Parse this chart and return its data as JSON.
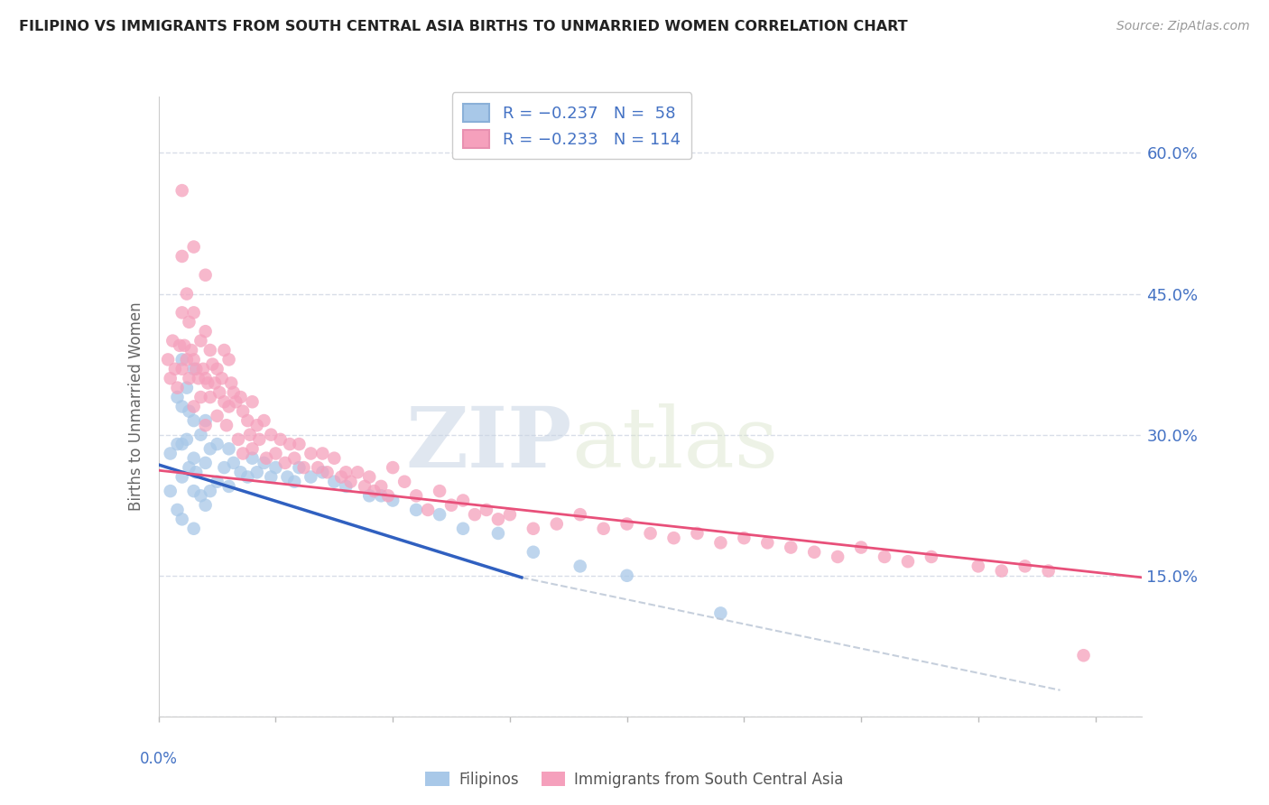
{
  "title": "FILIPINO VS IMMIGRANTS FROM SOUTH CENTRAL ASIA BIRTHS TO UNMARRIED WOMEN CORRELATION CHART",
  "source": "Source: ZipAtlas.com",
  "ylabel": "Births to Unmarried Women",
  "y_ticks": [
    0.0,
    0.15,
    0.3,
    0.45,
    0.6
  ],
  "y_tick_labels": [
    "",
    "15.0%",
    "30.0%",
    "45.0%",
    "60.0%"
  ],
  "x_range": [
    0.0,
    0.42
  ],
  "y_range": [
    0.0,
    0.66
  ],
  "legend_r1": "R = −0.237",
  "legend_n1": "N =  58",
  "legend_r2": "R = −0.233",
  "legend_n2": "N = 114",
  "color_filipino": "#a8c8e8",
  "color_immigrant": "#f5a0bc",
  "color_line_filipino": "#3060c0",
  "color_line_immigrant": "#e8507a",
  "color_dashed": "#b8c4d4",
  "color_axis_labels": "#4472c4",
  "color_grid": "#d8dde8",
  "watermark_zip": "ZIP",
  "watermark_atlas": "atlas",
  "scatter_size": 110,
  "filipino_x": [
    0.005,
    0.005,
    0.008,
    0.008,
    0.008,
    0.01,
    0.01,
    0.01,
    0.01,
    0.01,
    0.012,
    0.012,
    0.013,
    0.013,
    0.015,
    0.015,
    0.015,
    0.015,
    0.015,
    0.016,
    0.018,
    0.018,
    0.02,
    0.02,
    0.02,
    0.022,
    0.022,
    0.025,
    0.025,
    0.028,
    0.03,
    0.03,
    0.032,
    0.035,
    0.038,
    0.04,
    0.042,
    0.045,
    0.048,
    0.05,
    0.055,
    0.058,
    0.06,
    0.065,
    0.07,
    0.075,
    0.08,
    0.09,
    0.095,
    0.1,
    0.11,
    0.12,
    0.13,
    0.145,
    0.16,
    0.18,
    0.2,
    0.24
  ],
  "filipino_y": [
    0.28,
    0.24,
    0.34,
    0.29,
    0.22,
    0.38,
    0.33,
    0.29,
    0.255,
    0.21,
    0.35,
    0.295,
    0.325,
    0.265,
    0.37,
    0.315,
    0.275,
    0.24,
    0.2,
    0.26,
    0.3,
    0.235,
    0.315,
    0.27,
    0.225,
    0.285,
    0.24,
    0.29,
    0.25,
    0.265,
    0.285,
    0.245,
    0.27,
    0.26,
    0.255,
    0.275,
    0.26,
    0.27,
    0.255,
    0.265,
    0.255,
    0.25,
    0.265,
    0.255,
    0.26,
    0.25,
    0.245,
    0.235,
    0.235,
    0.23,
    0.22,
    0.215,
    0.2,
    0.195,
    0.175,
    0.16,
    0.15,
    0.11
  ],
  "immigrant_x": [
    0.004,
    0.005,
    0.006,
    0.007,
    0.008,
    0.009,
    0.01,
    0.01,
    0.01,
    0.01,
    0.011,
    0.012,
    0.012,
    0.013,
    0.013,
    0.014,
    0.015,
    0.015,
    0.015,
    0.015,
    0.016,
    0.017,
    0.018,
    0.018,
    0.019,
    0.02,
    0.02,
    0.02,
    0.02,
    0.021,
    0.022,
    0.022,
    0.023,
    0.024,
    0.025,
    0.025,
    0.026,
    0.027,
    0.028,
    0.028,
    0.029,
    0.03,
    0.03,
    0.031,
    0.032,
    0.033,
    0.034,
    0.035,
    0.036,
    0.036,
    0.038,
    0.039,
    0.04,
    0.04,
    0.042,
    0.043,
    0.045,
    0.046,
    0.048,
    0.05,
    0.052,
    0.054,
    0.056,
    0.058,
    0.06,
    0.062,
    0.065,
    0.068,
    0.07,
    0.072,
    0.075,
    0.078,
    0.08,
    0.082,
    0.085,
    0.088,
    0.09,
    0.092,
    0.095,
    0.098,
    0.1,
    0.105,
    0.11,
    0.115,
    0.12,
    0.125,
    0.13,
    0.135,
    0.14,
    0.145,
    0.15,
    0.16,
    0.17,
    0.18,
    0.19,
    0.2,
    0.21,
    0.22,
    0.23,
    0.24,
    0.25,
    0.26,
    0.27,
    0.28,
    0.29,
    0.3,
    0.31,
    0.32,
    0.33,
    0.35,
    0.36,
    0.37,
    0.38,
    0.395
  ],
  "immigrant_y": [
    0.38,
    0.36,
    0.4,
    0.37,
    0.35,
    0.395,
    0.56,
    0.49,
    0.43,
    0.37,
    0.395,
    0.45,
    0.38,
    0.42,
    0.36,
    0.39,
    0.5,
    0.43,
    0.38,
    0.33,
    0.37,
    0.36,
    0.4,
    0.34,
    0.37,
    0.47,
    0.41,
    0.36,
    0.31,
    0.355,
    0.39,
    0.34,
    0.375,
    0.355,
    0.37,
    0.32,
    0.345,
    0.36,
    0.39,
    0.335,
    0.31,
    0.38,
    0.33,
    0.355,
    0.345,
    0.335,
    0.295,
    0.34,
    0.325,
    0.28,
    0.315,
    0.3,
    0.335,
    0.285,
    0.31,
    0.295,
    0.315,
    0.275,
    0.3,
    0.28,
    0.295,
    0.27,
    0.29,
    0.275,
    0.29,
    0.265,
    0.28,
    0.265,
    0.28,
    0.26,
    0.275,
    0.255,
    0.26,
    0.25,
    0.26,
    0.245,
    0.255,
    0.24,
    0.245,
    0.235,
    0.265,
    0.25,
    0.235,
    0.22,
    0.24,
    0.225,
    0.23,
    0.215,
    0.22,
    0.21,
    0.215,
    0.2,
    0.205,
    0.215,
    0.2,
    0.205,
    0.195,
    0.19,
    0.195,
    0.185,
    0.19,
    0.185,
    0.18,
    0.175,
    0.17,
    0.18,
    0.17,
    0.165,
    0.17,
    0.16,
    0.155,
    0.16,
    0.155,
    0.065
  ],
  "fil_line_x": [
    0.0,
    0.155
  ],
  "fil_line_y": [
    0.268,
    0.148
  ],
  "imm_line_x": [
    0.0,
    0.42
  ],
  "imm_line_y": [
    0.262,
    0.148
  ],
  "dash_line_x": [
    0.155,
    0.385
  ],
  "dash_line_y": [
    0.148,
    0.028
  ]
}
